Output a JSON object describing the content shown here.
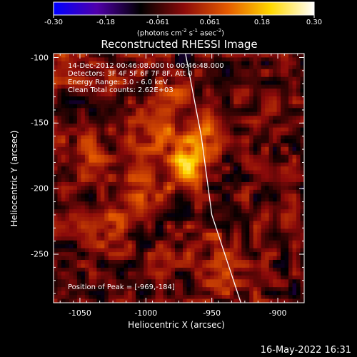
{
  "colorbar": {
    "ticks": [
      "-0.30",
      "-0.18",
      "-0.061",
      "0.061",
      "0.18",
      "0.30"
    ],
    "units_main": "(photons cm",
    "units_sup1": "-2",
    "units_mid": " s",
    "units_sup2": "-1",
    "units_mid2": " asec",
    "units_sup3": "-2",
    "units_end": ")",
    "colors": [
      "#0000ff",
      "#5000aa",
      "#000000",
      "#8b0a0a",
      "#e55a00",
      "#ffd800",
      "#ffffff"
    ]
  },
  "info": {
    "time_range": "14-Dec-2012 00:46:08.000 to 00:46:48.000",
    "detectors": "Detectors: 3F 4F 5F 6F 7F 8F, Att 0",
    "energy": "Energy Range: 3.0 - 6.0 keV",
    "method": "Clean     Total counts: 2.62E+03",
    "peak": "Position of Peak = [-969,-184]"
  },
  "datestamp": "16-May-2022 16:31",
  "chart_data": {
    "type": "heatmap",
    "title": "Reconstructed RHESSI Image",
    "xlabel": "Heliocentric X (arcsec)",
    "ylabel": "Heliocentric Y (arcsec)",
    "xlim": [
      -1070,
      -880
    ],
    "ylim": [
      -287,
      -97
    ],
    "x_ticks": [
      -1050,
      -1000,
      -950,
      -900
    ],
    "y_ticks": [
      -100,
      -150,
      -200,
      -250
    ],
    "peak": {
      "x": -969,
      "y": -184
    },
    "sources": [
      {
        "x": -969,
        "y": -184,
        "amp": 0.3,
        "sigma": 9
      },
      {
        "x": -960,
        "y": -162,
        "amp": 0.16,
        "sigma": 10
      },
      {
        "x": -990,
        "y": -160,
        "amp": 0.12,
        "sigma": 12
      },
      {
        "x": -1000,
        "y": -200,
        "amp": 0.12,
        "sigma": 11
      },
      {
        "x": -980,
        "y": -130,
        "amp": 0.09,
        "sigma": 10
      },
      {
        "x": -1030,
        "y": -230,
        "amp": 0.08,
        "sigma": 13
      },
      {
        "x": -1045,
        "y": -170,
        "amp": 0.07,
        "sigma": 12
      },
      {
        "x": -955,
        "y": -240,
        "amp": 0.06,
        "sigma": 13
      },
      {
        "x": -940,
        "y": -270,
        "amp": 0.07,
        "sigma": 12
      },
      {
        "x": -1060,
        "y": -105,
        "amp": 0.08,
        "sigma": 10
      },
      {
        "x": -1020,
        "y": -115,
        "amp": 0.06,
        "sigma": 12
      }
    ],
    "limb_curve": [
      [
        -970,
        -97
      ],
      [
        -958,
        -160
      ],
      [
        -950,
        -220
      ],
      [
        -928,
        -287
      ]
    ]
  }
}
